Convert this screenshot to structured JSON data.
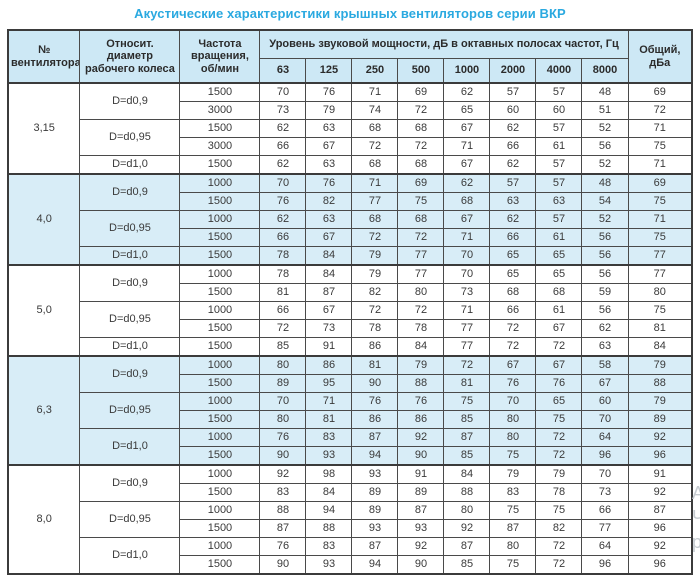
{
  "title": "Акустические характеристики крышных вентиляторов серии ВКР",
  "colors": {
    "title_text": "#2aa9e0",
    "header_bg": "#cde8f5",
    "shaded_group_bg": "#d8edf7",
    "border": "#3b3b3b",
    "cell_text": "#3a3a3a"
  },
  "table": {
    "headers": {
      "fan_no": "№ вентилятора",
      "diameter": "Относит. диаметр рабочего колеса",
      "rpm": "Частота вращения, об/мин",
      "spl_group": "Уровень звуковой мощности, дБ в октавных полосах частот, Гц",
      "freq_bands": [
        "63",
        "125",
        "250",
        "500",
        "1000",
        "2000",
        "4000",
        "8000"
      ],
      "total": "Общий, дБа"
    },
    "groups": [
      {
        "fan": "3,15",
        "shaded": false,
        "subgroups": [
          {
            "diameter": "D=d0,9",
            "rows": [
              {
                "rpm": "1500",
                "levels": [
                  70,
                  76,
                  71,
                  69,
                  62,
                  57,
                  57,
                  48
                ],
                "total": 69
              },
              {
                "rpm": "3000",
                "levels": [
                  73,
                  79,
                  74,
                  72,
                  65,
                  60,
                  60,
                  51
                ],
                "total": 72
              }
            ]
          },
          {
            "diameter": "D=d0,95",
            "rows": [
              {
                "rpm": "1500",
                "levels": [
                  62,
                  63,
                  68,
                  68,
                  67,
                  62,
                  57,
                  52
                ],
                "total": 71
              },
              {
                "rpm": "3000",
                "levels": [
                  66,
                  67,
                  72,
                  72,
                  71,
                  66,
                  61,
                  56
                ],
                "total": 75
              }
            ]
          },
          {
            "diameter": "D=d1,0",
            "rows": [
              {
                "rpm": "1500",
                "levels": [
                  62,
                  63,
                  68,
                  68,
                  67,
                  62,
                  57,
                  52
                ],
                "total": 71
              }
            ]
          }
        ]
      },
      {
        "fan": "4,0",
        "shaded": true,
        "subgroups": [
          {
            "diameter": "D=d0,9",
            "rows": [
              {
                "rpm": "1000",
                "levels": [
                  70,
                  76,
                  71,
                  69,
                  62,
                  57,
                  57,
                  48
                ],
                "total": 69
              },
              {
                "rpm": "1500",
                "levels": [
                  76,
                  82,
                  77,
                  75,
                  68,
                  63,
                  63,
                  54
                ],
                "total": 75
              }
            ]
          },
          {
            "diameter": "D=d0,95",
            "rows": [
              {
                "rpm": "1000",
                "levels": [
                  62,
                  63,
                  68,
                  68,
                  67,
                  62,
                  57,
                  52
                ],
                "total": 71
              },
              {
                "rpm": "1500",
                "levels": [
                  66,
                  67,
                  72,
                  72,
                  71,
                  66,
                  61,
                  56
                ],
                "total": 75
              }
            ]
          },
          {
            "diameter": "D=d1,0",
            "rows": [
              {
                "rpm": "1500",
                "levels": [
                  78,
                  84,
                  79,
                  77,
                  70,
                  65,
                  65,
                  56
                ],
                "total": 77
              }
            ]
          }
        ]
      },
      {
        "fan": "5,0",
        "shaded": false,
        "subgroups": [
          {
            "diameter": "D=d0,9",
            "rows": [
              {
                "rpm": "1000",
                "levels": [
                  78,
                  84,
                  79,
                  77,
                  70,
                  65,
                  65,
                  56
                ],
                "total": 77
              },
              {
                "rpm": "1500",
                "levels": [
                  81,
                  87,
                  82,
                  80,
                  73,
                  68,
                  68,
                  59
                ],
                "total": 80
              }
            ]
          },
          {
            "diameter": "D=d0,95",
            "rows": [
              {
                "rpm": "1000",
                "levels": [
                  66,
                  67,
                  72,
                  72,
                  71,
                  66,
                  61,
                  56
                ],
                "total": 75
              },
              {
                "rpm": "1500",
                "levels": [
                  72,
                  73,
                  78,
                  78,
                  77,
                  72,
                  67,
                  62
                ],
                "total": 81
              }
            ]
          },
          {
            "diameter": "D=d1,0",
            "rows": [
              {
                "rpm": "1500",
                "levels": [
                  85,
                  91,
                  86,
                  84,
                  77,
                  72,
                  72,
                  63
                ],
                "total": 84
              }
            ]
          }
        ]
      },
      {
        "fan": "6,3",
        "shaded": true,
        "subgroups": [
          {
            "diameter": "D=d0,9",
            "rows": [
              {
                "rpm": "1000",
                "levels": [
                  80,
                  86,
                  81,
                  79,
                  72,
                  67,
                  67,
                  58
                ],
                "total": 79
              },
              {
                "rpm": "1500",
                "levels": [
                  89,
                  95,
                  90,
                  88,
                  81,
                  76,
                  76,
                  67
                ],
                "total": 88
              }
            ]
          },
          {
            "diameter": "D=d0,95",
            "rows": [
              {
                "rpm": "1000",
                "levels": [
                  70,
                  71,
                  76,
                  76,
                  75,
                  70,
                  65,
                  60
                ],
                "total": 79
              },
              {
                "rpm": "1500",
                "levels": [
                  80,
                  81,
                  86,
                  86,
                  85,
                  80,
                  75,
                  70
                ],
                "total": 89
              }
            ]
          },
          {
            "diameter": "D=d1,0",
            "rows": [
              {
                "rpm": "1000",
                "levels": [
                  76,
                  83,
                  87,
                  92,
                  87,
                  80,
                  72,
                  64
                ],
                "total": 92
              },
              {
                "rpm": "1500",
                "levels": [
                  90,
                  93,
                  94,
                  90,
                  85,
                  75,
                  72,
                  96
                ],
                "total": 96
              }
            ]
          }
        ]
      },
      {
        "fan": "8,0",
        "shaded": false,
        "subgroups": [
          {
            "diameter": "D=d0,9",
            "rows": [
              {
                "rpm": "1000",
                "levels": [
                  92,
                  98,
                  93,
                  91,
                  84,
                  79,
                  79,
                  70
                ],
                "total": 91
              },
              {
                "rpm": "1500",
                "levels": [
                  83,
                  84,
                  89,
                  89,
                  88,
                  83,
                  78,
                  73
                ],
                "total": 92
              }
            ]
          },
          {
            "diameter": "D=d0,95",
            "rows": [
              {
                "rpm": "1000",
                "levels": [
                  88,
                  94,
                  89,
                  87,
                  80,
                  75,
                  75,
                  66
                ],
                "total": 87
              },
              {
                "rpm": "1500",
                "levels": [
                  87,
                  88,
                  93,
                  93,
                  92,
                  87,
                  82,
                  77
                ],
                "total": 96
              }
            ]
          },
          {
            "diameter": "D=d1,0",
            "rows": [
              {
                "rpm": "1000",
                "levels": [
                  76,
                  83,
                  87,
                  92,
                  87,
                  80,
                  72,
                  64
                ],
                "total": 92
              },
              {
                "rpm": "1500",
                "levels": [
                  90,
                  93,
                  94,
                  90,
                  85,
                  75,
                  72,
                  96
                ],
                "total": 96
              }
            ]
          }
        ]
      }
    ]
  },
  "watermark": {
    "lines": [
      "Ан",
      "Чт",
      "ра"
    ]
  }
}
